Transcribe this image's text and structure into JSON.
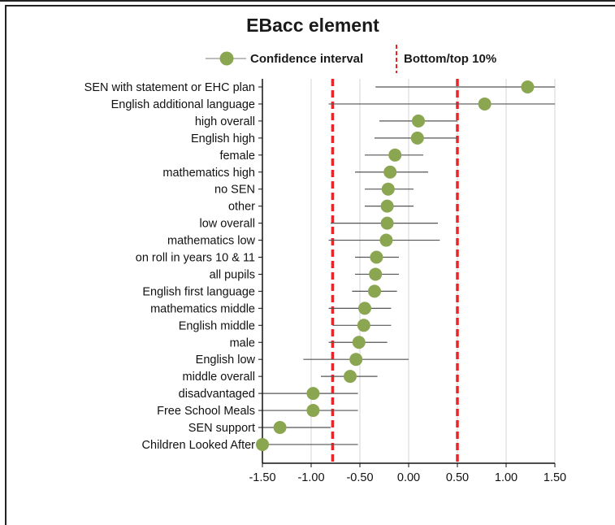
{
  "chart_data": {
    "type": "scatter",
    "title": "EBacc element",
    "legend": {
      "placement": "top",
      "items": [
        {
          "label": "Confidence interval",
          "kind": "point-with-interval"
        },
        {
          "label": "Bottom/top 10%",
          "kind": "dashed-reference-line"
        }
      ]
    },
    "xlim": [
      -1.5,
      1.5
    ],
    "x_ticks": [
      -1.5,
      -1.0,
      -0.5,
      0.0,
      0.5,
      1.0,
      1.5
    ],
    "x_tick_labels": [
      "-1.50",
      "-1.00",
      "-0.50",
      "0.00",
      "0.50",
      "1.00",
      "1.50"
    ],
    "grid": "vertical",
    "reference_lines": [
      -0.78,
      0.5
    ],
    "categories": [
      "SEN with statement or EHC plan",
      "English additional language",
      "high overall",
      "English high",
      "female",
      "mathematics high",
      "no SEN",
      "other",
      "low overall",
      "mathematics low",
      "on roll in years 10 & 11",
      "all pupils",
      "English first language",
      "mathematics middle",
      "English middle",
      "male",
      "English low",
      "middle overall",
      "disadvantaged",
      "Free School Meals",
      "SEN support",
      "Children Looked After"
    ],
    "values": [
      1.22,
      0.78,
      0.1,
      0.09,
      -0.14,
      -0.19,
      -0.21,
      -0.22,
      -0.22,
      -0.23,
      -0.33,
      -0.34,
      -0.35,
      -0.45,
      -0.46,
      -0.51,
      -0.54,
      -0.6,
      -0.98,
      -0.98,
      -1.32,
      -1.5
    ],
    "lower": [
      -0.34,
      -0.82,
      -0.3,
      -0.35,
      -0.45,
      -0.55,
      -0.45,
      -0.45,
      -0.8,
      -0.82,
      -0.55,
      -0.55,
      -0.58,
      -0.82,
      -0.78,
      -0.82,
      -1.08,
      -0.9,
      -1.5,
      -1.5,
      -1.5,
      -1.5
    ],
    "upper": [
      1.5,
      1.5,
      0.5,
      0.5,
      0.15,
      0.2,
      0.05,
      0.05,
      0.3,
      0.32,
      -0.1,
      -0.1,
      -0.12,
      -0.18,
      -0.18,
      -0.22,
      0.0,
      -0.32,
      -0.52,
      -0.52,
      -0.8,
      -0.52
    ],
    "colors": {
      "point": "#8aa651",
      "interval": "#555555",
      "reference": "#e8262a",
      "grid": "#d4d4d4",
      "axis": "#111111"
    }
  }
}
